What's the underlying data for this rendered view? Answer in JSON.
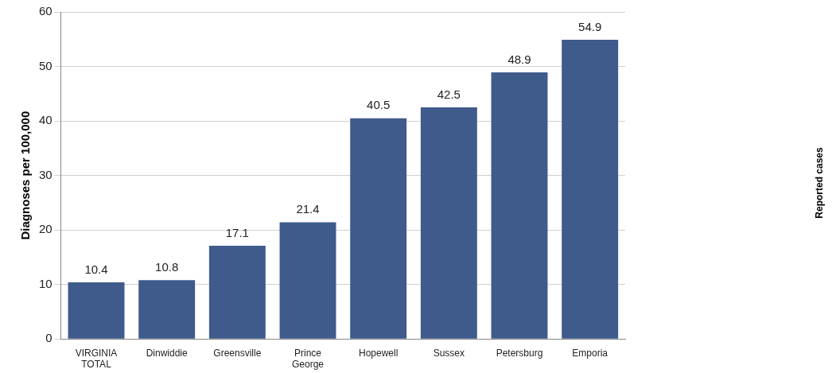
{
  "chart_data": {
    "type": "bar",
    "ylabel": "Diagnoses per 100,000",
    "annotations": [
      "Reported cases"
    ],
    "categories": [
      "VIRGINIA TOTAL",
      "Dinwiddie",
      "Greensville",
      "Prince George",
      "Hopewell",
      "Sussex",
      "Petersburg",
      "Emporia"
    ],
    "values": [
      10.4,
      10.8,
      17.1,
      21.4,
      40.5,
      42.5,
      48.9,
      54.9
    ],
    "color": "#3f5b8c",
    "ylim": [
      0,
      60
    ],
    "yticks": [
      0,
      10,
      20,
      30,
      40,
      50,
      60
    ],
    "grid": "y",
    "data_labels": true,
    "legend": false
  }
}
